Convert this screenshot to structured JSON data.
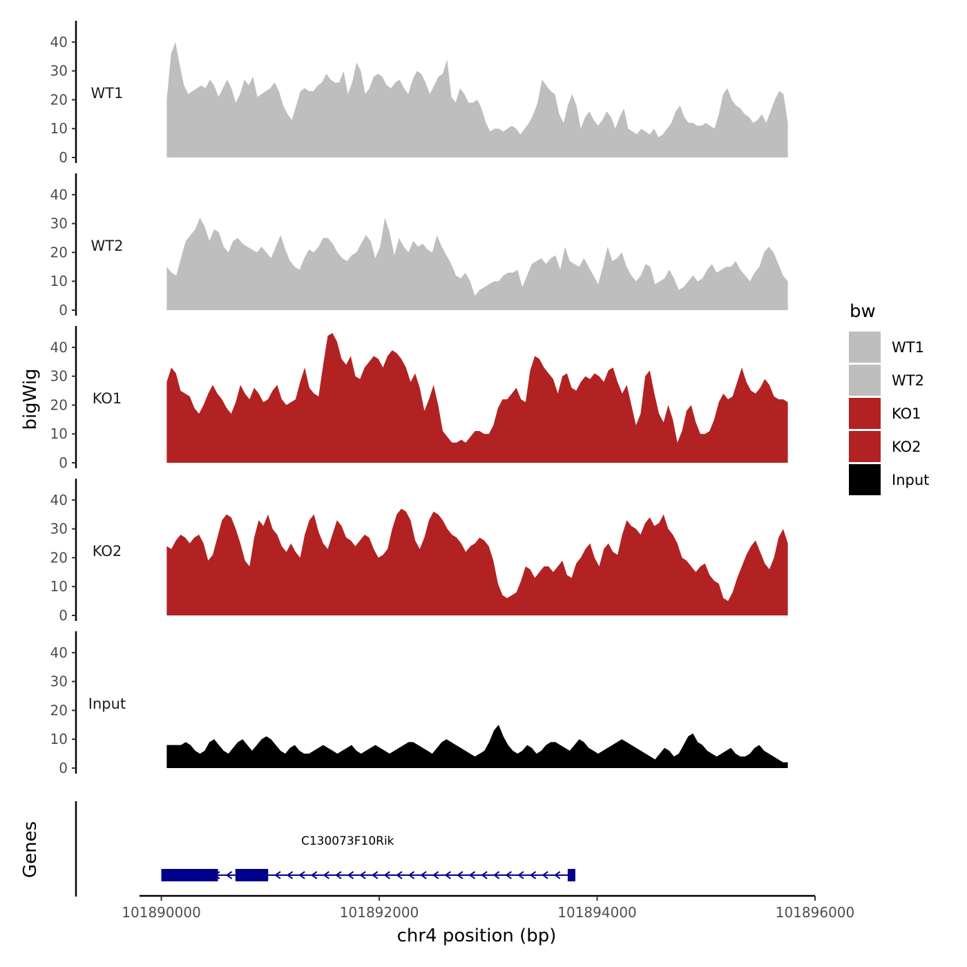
{
  "chart_data": {
    "type": "area",
    "xlabel": "chr4 position (bp)",
    "ylabel": "bigWig",
    "genes_label": "Genes",
    "xlim": [
      101889800,
      101896000
    ],
    "x_ticks": [
      101890000,
      101892000,
      101894000,
      101896000
    ],
    "x_tick_labels": [
      "101890000",
      "101892000",
      "101894000",
      "101896000"
    ],
    "ylim": [
      0,
      45
    ],
    "y_ticks": [
      0,
      10,
      20,
      30,
      40
    ],
    "y_tick_labels": [
      "0",
      "10",
      "20",
      "30",
      "40"
    ],
    "signal_x_range": [
      101890050,
      101895750
    ],
    "legend": {
      "title": "bw",
      "entries": [
        {
          "name": "WT1",
          "color": "#bebebe"
        },
        {
          "name": "WT2",
          "color": "#bebebe"
        },
        {
          "name": "KO1",
          "color": "#b22222"
        },
        {
          "name": "KO2",
          "color": "#b22222"
        },
        {
          "name": "Input",
          "color": "#000000"
        }
      ]
    },
    "series": [
      {
        "name": "WT1",
        "color": "#bebebe",
        "values": [
          20,
          36,
          40,
          32,
          25,
          22,
          23,
          24,
          25,
          24,
          27,
          25,
          21,
          24,
          27,
          24,
          19,
          22,
          27,
          25,
          28,
          21,
          22,
          23,
          24,
          26,
          23,
          18,
          15,
          13,
          18,
          23,
          24,
          23,
          23,
          25,
          26,
          29,
          27,
          26,
          26,
          30,
          22,
          26,
          33,
          30,
          22,
          24,
          28,
          29,
          28,
          25,
          24,
          26,
          27,
          24,
          22,
          27,
          30,
          29,
          26,
          22,
          25,
          28,
          29,
          34,
          21,
          19,
          24,
          22,
          19,
          19,
          20,
          17,
          12,
          9,
          10,
          10,
          9,
          10,
          11,
          10,
          8,
          10,
          12,
          15,
          19,
          27,
          25,
          23,
          22,
          15,
          12,
          18,
          22,
          18,
          10,
          14,
          16,
          13,
          11,
          13,
          16,
          14,
          10,
          14,
          17,
          10,
          9,
          8,
          10,
          9,
          8,
          10,
          7,
          8,
          10,
          12,
          16,
          18,
          14,
          12,
          12,
          11,
          11,
          12,
          11,
          10,
          15,
          22,
          24,
          20,
          18,
          17,
          15,
          14,
          12,
          13,
          15,
          12,
          16,
          20,
          23,
          22,
          12
        ]
      },
      {
        "name": "WT2",
        "color": "#bebebe",
        "values": [
          15,
          13,
          12,
          18,
          24,
          26,
          28,
          32,
          29,
          24,
          28,
          27,
          22,
          20,
          24,
          25,
          23,
          22,
          21,
          20,
          22,
          20,
          18,
          22,
          26,
          21,
          17,
          15,
          14,
          18,
          21,
          20,
          22,
          25,
          25,
          23,
          20,
          18,
          17,
          19,
          20,
          23,
          26,
          24,
          18,
          22,
          32,
          27,
          19,
          25,
          22,
          20,
          24,
          22,
          23,
          21,
          20,
          26,
          22,
          19,
          16,
          12,
          11,
          13,
          10,
          5,
          7,
          8,
          9,
          10,
          10,
          12,
          13,
          13,
          14,
          8,
          12,
          16,
          17,
          18,
          16,
          18,
          19,
          14,
          22,
          17,
          16,
          15,
          18,
          15,
          12,
          9,
          15,
          22,
          17,
          18,
          20,
          15,
          12,
          10,
          12,
          16,
          15,
          9,
          10,
          11,
          14,
          11,
          7,
          8,
          10,
          12,
          10,
          11,
          14,
          16,
          13,
          14,
          15,
          15,
          17,
          14,
          12,
          10,
          13,
          15,
          20,
          22,
          20,
          16,
          12,
          10
        ]
      },
      {
        "name": "KO1",
        "color": "#b22222",
        "values": [
          28,
          33,
          31,
          25,
          24,
          23,
          19,
          17,
          20,
          24,
          27,
          24,
          22,
          19,
          17,
          21,
          27,
          24,
          22,
          26,
          24,
          21,
          22,
          25,
          27,
          22,
          20,
          21,
          22,
          28,
          33,
          26,
          24,
          23,
          34,
          44,
          45,
          42,
          36,
          34,
          37,
          30,
          29,
          33,
          35,
          37,
          36,
          33,
          37,
          39,
          38,
          36,
          33,
          28,
          31,
          26,
          18,
          22,
          27,
          20,
          11,
          9,
          7,
          7,
          8,
          7,
          9,
          11,
          11,
          10,
          10,
          13,
          19,
          22,
          22,
          24,
          26,
          22,
          21,
          32,
          37,
          36,
          33,
          31,
          29,
          24,
          30,
          31,
          26,
          25,
          28,
          30,
          29,
          31,
          30,
          28,
          32,
          33,
          28,
          24,
          27,
          20,
          13,
          17,
          30,
          32,
          24,
          17,
          14,
          20,
          15,
          7,
          11,
          18,
          20,
          14,
          10,
          10,
          11,
          15,
          21,
          24,
          22,
          23,
          28,
          33,
          28,
          25,
          24,
          26,
          29,
          27,
          23,
          22,
          22,
          21
        ]
      },
      {
        "name": "KO2",
        "color": "#b22222",
        "values": [
          24,
          23,
          26,
          28,
          27,
          25,
          27,
          28,
          25,
          19,
          21,
          27,
          33,
          35,
          34,
          30,
          25,
          19,
          17,
          27,
          33,
          31,
          35,
          30,
          28,
          24,
          22,
          25,
          22,
          20,
          28,
          33,
          35,
          29,
          25,
          23,
          28,
          33,
          31,
          27,
          26,
          24,
          26,
          28,
          27,
          23,
          20,
          21,
          23,
          30,
          35,
          37,
          36,
          33,
          26,
          23,
          27,
          33,
          36,
          35,
          33,
          30,
          28,
          27,
          25,
          22,
          24,
          25,
          27,
          26,
          24,
          19,
          11,
          7,
          6,
          7,
          8,
          12,
          17,
          16,
          13,
          15,
          17,
          17,
          15,
          17,
          19,
          14,
          13,
          18,
          20,
          23,
          25,
          20,
          17,
          23,
          25,
          22,
          21,
          28,
          33,
          31,
          30,
          28,
          32,
          34,
          31,
          32,
          35,
          30,
          28,
          25,
          20,
          19,
          17,
          15,
          17,
          18,
          14,
          12,
          11,
          6,
          5,
          8,
          13,
          17,
          21,
          24,
          26,
          22,
          18,
          16,
          20,
          27,
          30,
          25
        ]
      },
      {
        "name": "Input",
        "color": "#000000",
        "values": [
          8,
          8,
          8,
          8,
          9,
          8,
          6,
          5,
          6,
          9,
          10,
          8,
          6,
          5,
          7,
          9,
          10,
          8,
          6,
          8,
          10,
          11,
          10,
          8,
          6,
          5,
          7,
          8,
          6,
          5,
          5,
          6,
          7,
          8,
          7,
          6,
          5,
          6,
          7,
          8,
          6,
          5,
          6,
          7,
          8,
          7,
          6,
          5,
          6,
          7,
          8,
          9,
          9,
          8,
          7,
          6,
          5,
          7,
          9,
          10,
          9,
          8,
          7,
          6,
          5,
          4,
          5,
          6,
          9,
          13,
          15,
          11,
          8,
          6,
          5,
          6,
          8,
          7,
          5,
          6,
          8,
          9,
          9,
          8,
          7,
          6,
          8,
          10,
          9,
          7,
          6,
          5,
          6,
          7,
          8,
          9,
          10,
          9,
          8,
          7,
          6,
          5,
          4,
          3,
          5,
          7,
          6,
          4,
          5,
          8,
          11,
          12,
          9,
          8,
          6,
          5,
          4,
          5,
          6,
          7,
          5,
          4,
          4,
          5,
          7,
          8,
          6,
          5,
          4,
          3,
          2,
          2
        ]
      }
    ],
    "gene": {
      "name": "C130073F10Rik",
      "color": "#00008b",
      "strand": "-",
      "start": 101890000,
      "end": 101893800,
      "exons": [
        [
          101890000,
          101890520
        ],
        [
          101890680,
          101890980
        ],
        [
          101893730,
          101893800
        ]
      ]
    }
  }
}
